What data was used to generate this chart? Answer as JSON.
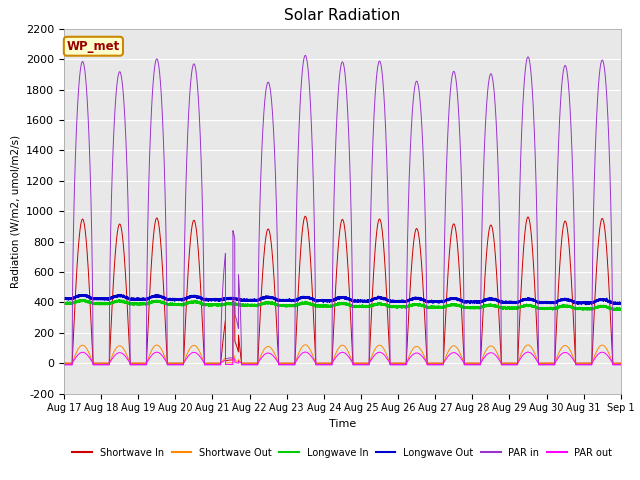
{
  "title": "Solar Radiation",
  "xlabel": "Time",
  "ylabel": "Radiation (W/m2, umol/m2/s)",
  "ylim": [
    -200,
    2200
  ],
  "yticks": [
    -200,
    0,
    200,
    400,
    600,
    800,
    1000,
    1200,
    1400,
    1600,
    1800,
    2000,
    2200
  ],
  "bg_color": "#e8e8e8",
  "fig_color": "#ffffff",
  "annotation_label": "WP_met",
  "annotation_bg": "#ffffcc",
  "annotation_border": "#cc8800",
  "annotation_text_color": "#990000",
  "n_days": 15,
  "start_day": 17,
  "series": {
    "shortwave_in": {
      "color": "#cc0000",
      "label": "Shortwave In"
    },
    "shortwave_out": {
      "color": "#ff8800",
      "label": "Shortwave Out"
    },
    "longwave_in": {
      "color": "#00cc00",
      "label": "Longwave In"
    },
    "longwave_out": {
      "color": "#0000cc",
      "label": "Longwave Out"
    },
    "par_in": {
      "color": "#9933cc",
      "label": "PAR in"
    },
    "par_out": {
      "color": "#ff00ff",
      "label": "PAR out"
    }
  }
}
